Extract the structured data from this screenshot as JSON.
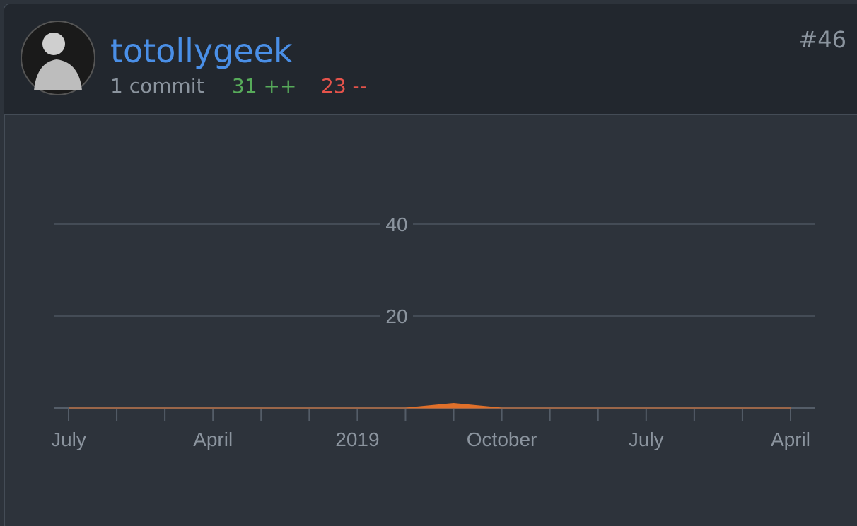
{
  "header": {
    "username": "totollygeek",
    "commits": "1 commit",
    "additions": "31 ++",
    "deletions": "23 --",
    "rank": "#46"
  },
  "chart_data": {
    "type": "area",
    "categories": [
      "July",
      null,
      null,
      "April",
      null,
      null,
      "2019",
      null,
      null,
      "October",
      null,
      null,
      "July",
      null,
      null,
      "April"
    ],
    "series": [
      {
        "color": "#e0702a",
        "values": [
          0,
          0,
          0,
          0,
          0,
          0,
          0,
          0,
          1,
          0,
          0,
          0,
          0,
          0,
          0,
          0
        ]
      }
    ],
    "ylim": [
      0,
      60
    ],
    "yticks": [
      20,
      40
    ],
    "grid": true
  }
}
